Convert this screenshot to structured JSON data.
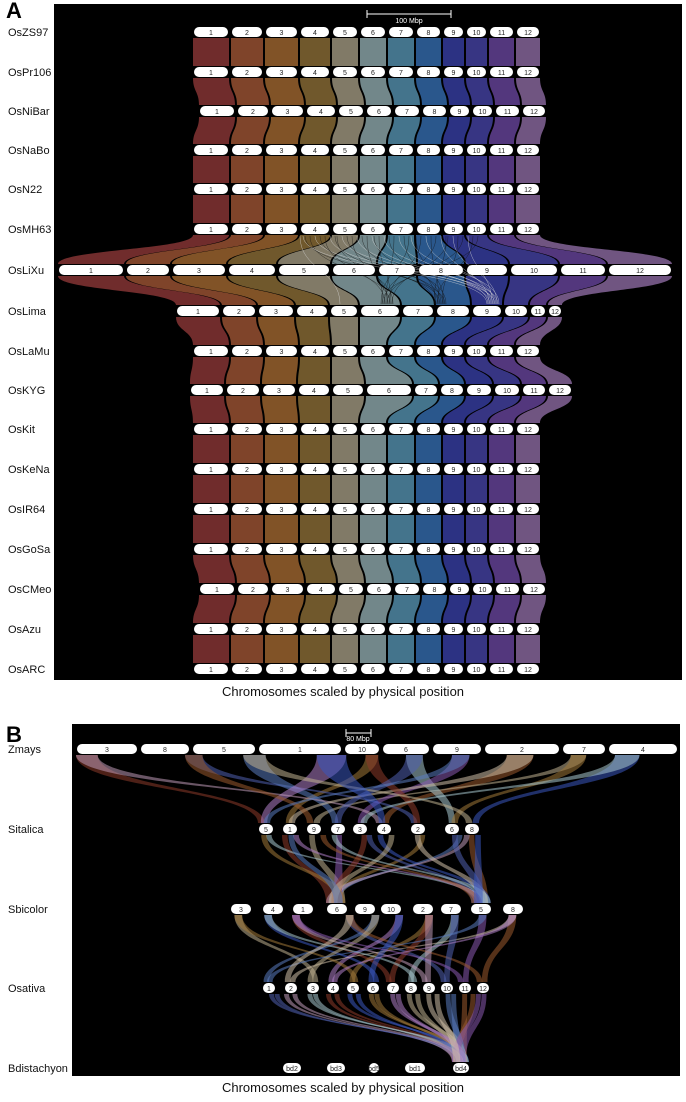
{
  "panelA": {
    "letter": "A",
    "caption": "Chromosomes scaled by physical position",
    "scale_label": "100 Mbp",
    "colors": [
      "#7a3030",
      "#8a4a2e",
      "#8c5a2a",
      "#7a6030",
      "#8c8470",
      "#7c9296",
      "#4a7e98",
      "#2e5e98",
      "#30368e",
      "#3c3a8e",
      "#5a3c88",
      "#7a5c8c"
    ],
    "genomes": [
      {
        "name": "OsZS97",
        "chrs": [
          "1",
          "2",
          "3",
          "4",
          "5",
          "6",
          "7",
          "8",
          "9",
          "10",
          "11",
          "12"
        ]
      },
      {
        "name": "OsPr106",
        "chrs": [
          "1",
          "2",
          "3",
          "4",
          "5",
          "6",
          "7",
          "8",
          "9",
          "10",
          "11",
          "12"
        ]
      },
      {
        "name": "OsNiBar",
        "chrs": [
          "1",
          "2",
          "3",
          "4",
          "5",
          "6",
          "7",
          "8",
          "9",
          "10",
          "11",
          "12"
        ]
      },
      {
        "name": "OsNaBo",
        "chrs": [
          "1",
          "2",
          "3",
          "4",
          "5",
          "6",
          "7",
          "8",
          "9",
          "10",
          "11",
          "12"
        ]
      },
      {
        "name": "OsN22",
        "chrs": [
          "1",
          "2",
          "3",
          "4",
          "5",
          "6",
          "7",
          "8",
          "9",
          "10",
          "11",
          "12"
        ]
      },
      {
        "name": "OsMH63",
        "chrs": [
          "1",
          "2",
          "3",
          "4",
          "5",
          "6",
          "7",
          "8",
          "9",
          "10",
          "11",
          "12"
        ]
      },
      {
        "name": "OsLiXu",
        "chrs": [
          "1",
          "2",
          "3",
          "4",
          "5",
          "6",
          "7",
          "8",
          "9",
          "10",
          "11",
          "12"
        ]
      },
      {
        "name": "OsLima",
        "chrs": [
          "1",
          "2",
          "3",
          "4",
          "5",
          "6",
          "7",
          "8",
          "9",
          "10",
          "11",
          "12"
        ]
      },
      {
        "name": "OsLaMu",
        "chrs": [
          "1",
          "2",
          "3",
          "4",
          "5",
          "6",
          "7",
          "8",
          "9",
          "10",
          "11",
          "12"
        ]
      },
      {
        "name": "OsKYG",
        "chrs": [
          "1",
          "2",
          "3",
          "4",
          "5",
          "6",
          "7",
          "8",
          "9",
          "10",
          "11",
          "12"
        ]
      },
      {
        "name": "OsKit",
        "chrs": [
          "1",
          "2",
          "3",
          "4",
          "5",
          "6",
          "7",
          "8",
          "9",
          "10",
          "11",
          "12"
        ]
      },
      {
        "name": "OsKeNa",
        "chrs": [
          "1",
          "2",
          "3",
          "4",
          "5",
          "6",
          "7",
          "8",
          "9",
          "10",
          "11",
          "12"
        ]
      },
      {
        "name": "OsIR64",
        "chrs": [
          "1",
          "2",
          "3",
          "4",
          "5",
          "6",
          "7",
          "8",
          "9",
          "10",
          "11",
          "12"
        ]
      },
      {
        "name": "OsGoSa",
        "chrs": [
          "1",
          "2",
          "3",
          "4",
          "5",
          "6",
          "7",
          "8",
          "9",
          "10",
          "11",
          "12"
        ]
      },
      {
        "name": "OsCMeo",
        "chrs": [
          "1",
          "2",
          "3",
          "4",
          "5",
          "6",
          "7",
          "8",
          "9",
          "10",
          "11",
          "12"
        ]
      },
      {
        "name": "OsAzu",
        "chrs": [
          "1",
          "2",
          "3",
          "4",
          "5",
          "6",
          "7",
          "8",
          "9",
          "10",
          "11",
          "12"
        ]
      },
      {
        "name": "OsARC",
        "chrs": [
          "1",
          "2",
          "3",
          "4",
          "5",
          "6",
          "7",
          "8",
          "9",
          "10",
          "11",
          "12"
        ]
      }
    ]
  },
  "panelB": {
    "letter": "B",
    "caption": "Chromosomes scaled by physical position",
    "scale_label": "80 Mbp",
    "genomes": [
      {
        "name": "Zmays",
        "chrs": [
          "3",
          "8",
          "5",
          "1",
          "10",
          "6",
          "9",
          "2",
          "7",
          "4"
        ]
      },
      {
        "name": "Sitalica",
        "chrs": [
          "5",
          "1",
          "9",
          "7",
          "3",
          "4",
          "2",
          "6",
          "8"
        ]
      },
      {
        "name": "Sbicolor",
        "chrs": [
          "3",
          "4",
          "1",
          "6",
          "9",
          "10",
          "2",
          "7",
          "5",
          "8"
        ]
      },
      {
        "name": "Osativa",
        "chrs": [
          "1",
          "2",
          "3",
          "4",
          "5",
          "6",
          "7",
          "8",
          "9",
          "10",
          "11",
          "12"
        ]
      },
      {
        "name": "Bdistachyon",
        "chrs": [
          "bd2",
          "bd3",
          "bd5",
          "bd1",
          "bd4"
        ]
      }
    ],
    "link_colors": [
      "#8c3a2a",
      "#9a5a2e",
      "#a07838",
      "#5060b0",
      "#c0b090",
      "#a8c8d0",
      "#5a7cc0",
      "#3a58c0",
      "#8a5ab0",
      "#b080c8",
      "#c09ab8",
      "#d0c0a8"
    ]
  }
}
